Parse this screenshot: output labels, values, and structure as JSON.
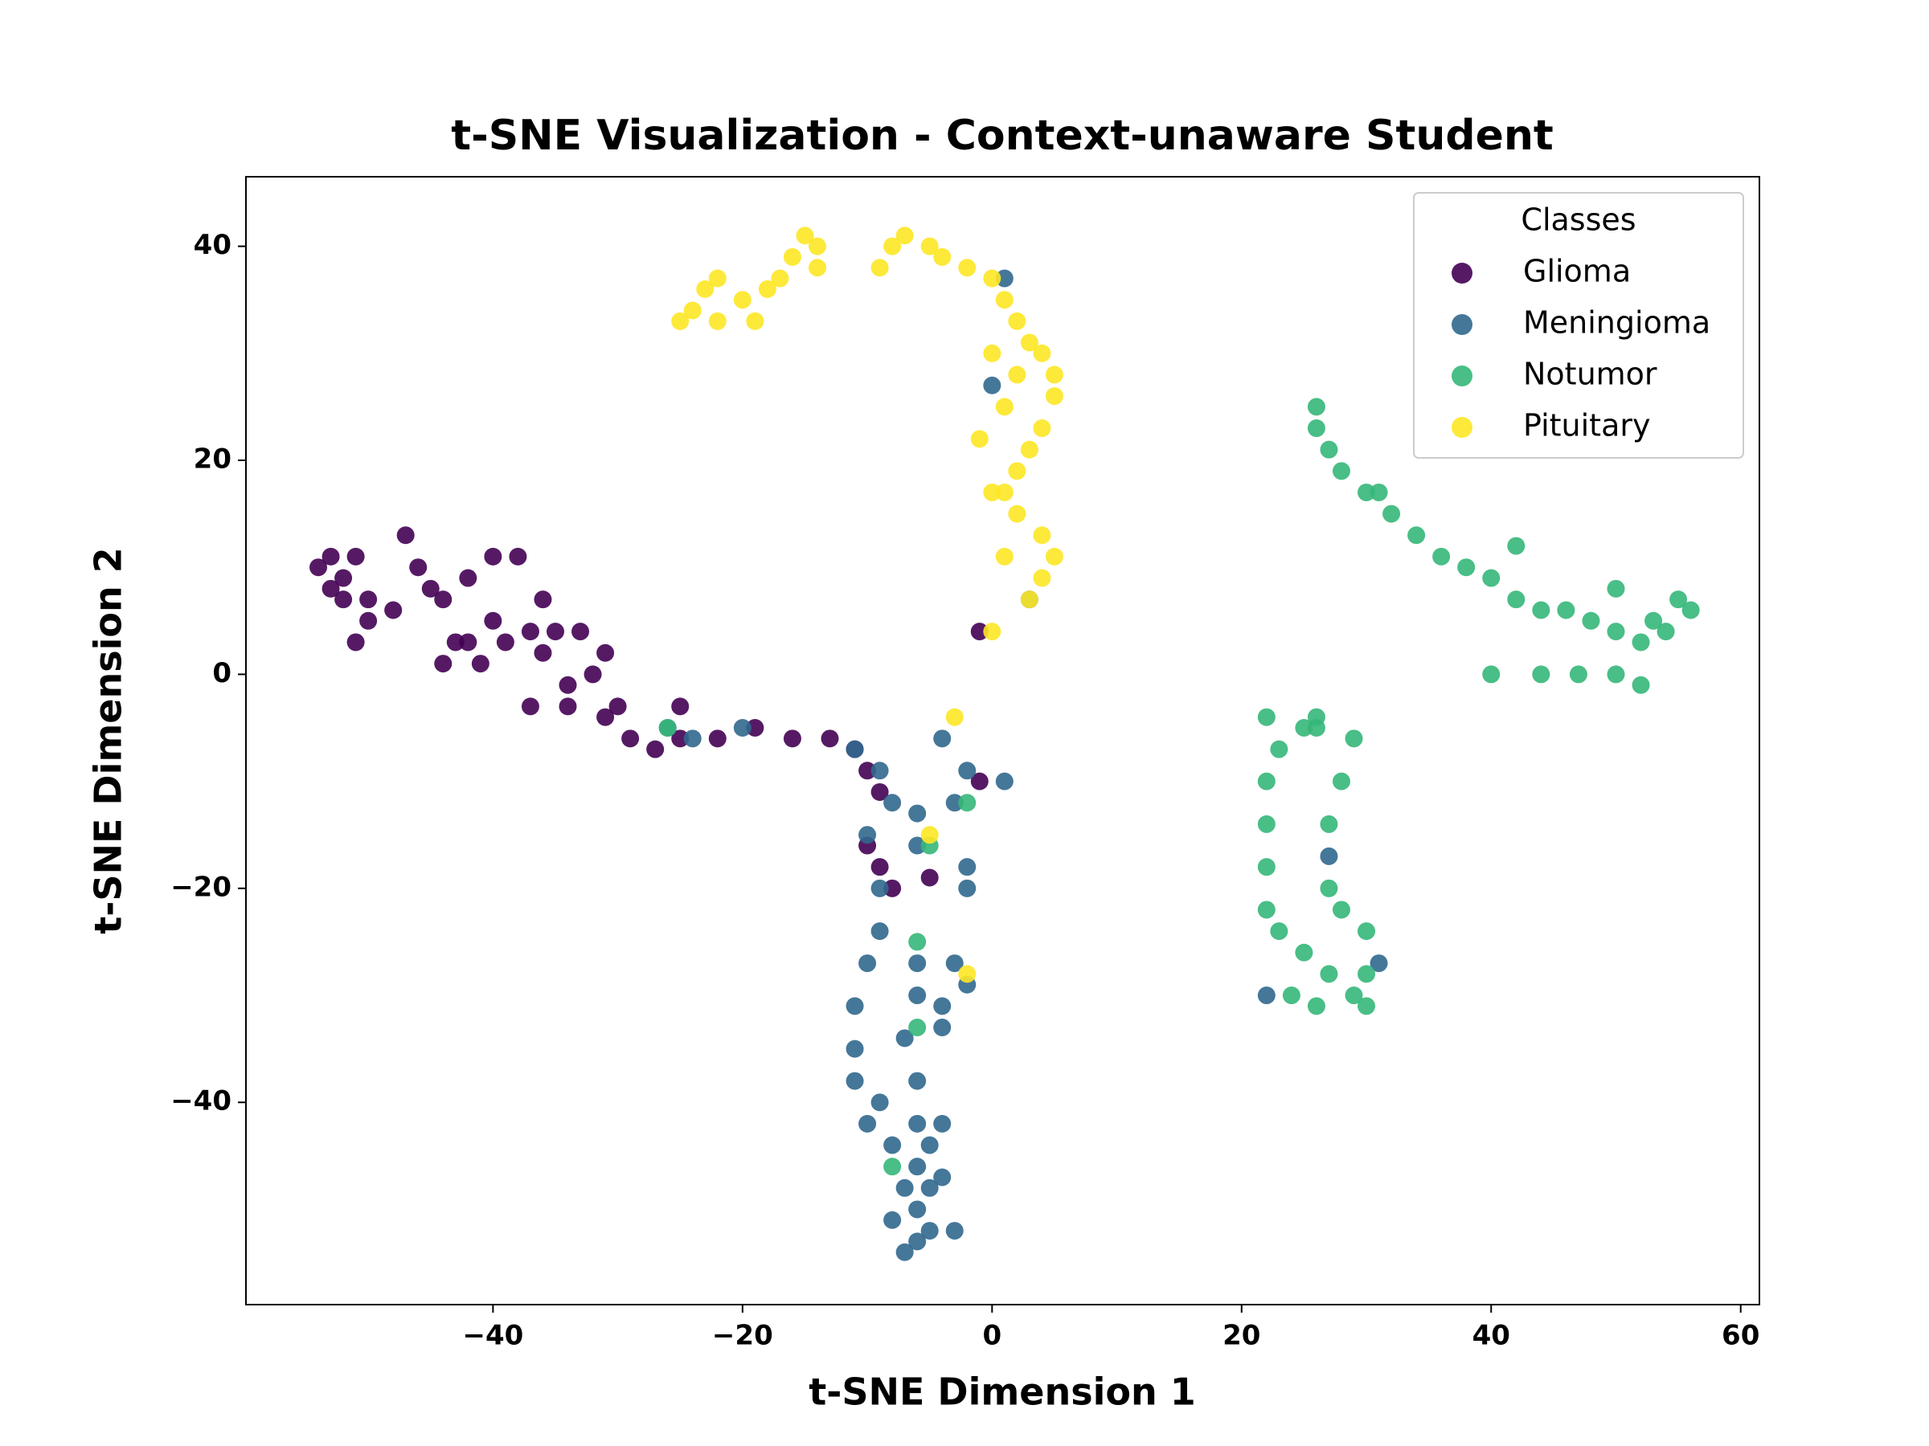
{
  "chart_data": {
    "type": "scatter",
    "title": "t-SNE Visualization - Context-unaware Student",
    "x_label": "t-SNE Dimension 1",
    "y_label": "t-SNE Dimension 2",
    "legend_title": "Classes",
    "legend": "upper right",
    "xlim": [
      -59.8,
      61.5
    ],
    "ylim": [
      -58.9,
      46.5
    ],
    "xticks": [
      {
        "value": -40,
        "label": "−40"
      },
      {
        "value": -20,
        "label": "−20"
      },
      0,
      20,
      40,
      60
    ],
    "yticks": [
      {
        "value": -40,
        "label": "−40"
      },
      {
        "value": -20,
        "label": "−20"
      },
      0,
      20,
      40
    ],
    "series": [
      {
        "name": "Glioma",
        "color": "#440154",
        "x": [
          -54,
          -53,
          -52,
          -51,
          -50,
          -52,
          -53,
          -50,
          -51,
          -48,
          -47,
          -46,
          -45,
          -44,
          -42,
          -40,
          -38,
          -36,
          -37,
          -39,
          -41,
          -42,
          -40,
          -44,
          -43,
          -35,
          -33,
          -31,
          -32,
          -34,
          -36,
          -37,
          -34,
          -31,
          -29,
          -27,
          -25,
          -22,
          -19,
          -16,
          -13,
          -11,
          -10,
          -9,
          -10,
          -9,
          -8,
          -1,
          -5,
          -1,
          -25,
          -30
        ],
        "y": [
          10,
          11,
          9,
          11,
          7,
          7,
          8,
          5,
          3,
          6,
          13,
          10,
          8,
          7,
          9,
          11,
          11,
          7,
          4,
          3,
          1,
          3,
          5,
          1,
          3,
          4,
          4,
          2,
          0,
          -1,
          2,
          -3,
          -3,
          -4,
          -6,
          -7,
          -6,
          -6,
          -5,
          -6,
          -6,
          -7,
          -9,
          -11,
          -16,
          -18,
          -20,
          -10,
          -19,
          4,
          -3,
          -3
        ]
      },
      {
        "name": "Meningioma",
        "color": "#31688e",
        "x": [
          -26,
          -24,
          -20,
          -11,
          -9,
          -8,
          -10,
          -9,
          -9,
          -10,
          -11,
          -11,
          -11,
          -10,
          -8,
          -7,
          -8,
          -7,
          -6,
          -5,
          -6,
          -5,
          -6,
          -5,
          -6,
          -6,
          -7,
          -6,
          -6,
          -6,
          -6,
          -3,
          -2,
          -2,
          -3,
          -4,
          -4,
          -2,
          -4,
          1,
          -9,
          -4,
          -4,
          -3,
          1,
          0,
          3,
          22,
          31,
          27,
          -2
        ],
        "y": [
          -5,
          -6,
          -5,
          -7,
          -9,
          -12,
          -15,
          -20,
          -24,
          -27,
          -31,
          -35,
          -38,
          -42,
          -44,
          -48,
          -51,
          -54,
          -53,
          -52,
          -50,
          -48,
          -46,
          -44,
          -42,
          -38,
          -34,
          -30,
          -27,
          -16,
          -13,
          -12,
          -18,
          -20,
          -27,
          -31,
          -33,
          -29,
          -6,
          -10,
          -40,
          -42,
          -47,
          -52,
          37,
          27,
          7,
          -30,
          -27,
          -17,
          -9
        ]
      },
      {
        "name": "Notumor",
        "color": "#35b779",
        "x": [
          26,
          26,
          27,
          28,
          30,
          32,
          34,
          36,
          38,
          40,
          42,
          44,
          46,
          48,
          50,
          52,
          53,
          55,
          56,
          54,
          50,
          42,
          31,
          40,
          44,
          47,
          50,
          52,
          26,
          25,
          23,
          22,
          22,
          22,
          22,
          23,
          25,
          27,
          29,
          30,
          30,
          30,
          28,
          27,
          24,
          26,
          22,
          29,
          28,
          27,
          26,
          -26,
          -6,
          -6,
          -8,
          -5,
          -2
        ],
        "y": [
          25,
          23,
          21,
          19,
          17,
          15,
          13,
          11,
          10,
          9,
          7,
          6,
          6,
          5,
          4,
          3,
          5,
          7,
          6,
          4,
          8,
          12,
          17,
          0,
          0,
          0,
          0,
          -1,
          -4,
          -5,
          -7,
          -10,
          -14,
          -18,
          -22,
          -24,
          -26,
          -28,
          -30,
          -31,
          -28,
          -24,
          -22,
          -20,
          -30,
          -31,
          -4,
          -6,
          -10,
          -14,
          -5,
          -5,
          -25,
          -33,
          -46,
          -16,
          -12
        ]
      },
      {
        "name": "Pituitary",
        "color": "#fde725",
        "x": [
          -25,
          -24,
          -23,
          -22,
          -20,
          -18,
          -17,
          -16,
          -15,
          -14,
          -14,
          -19,
          -22,
          -9,
          -8,
          -7,
          -5,
          -4,
          -2,
          0,
          1,
          2,
          3,
          4,
          5,
          5,
          4,
          3,
          2,
          1,
          2,
          4,
          5,
          4,
          3,
          0,
          1,
          0,
          1,
          -1,
          0,
          2,
          -3,
          -5,
          -2
        ],
        "y": [
          33,
          34,
          36,
          37,
          35,
          36,
          37,
          39,
          41,
          40,
          38,
          33,
          33,
          38,
          40,
          41,
          40,
          39,
          38,
          37,
          35,
          33,
          31,
          30,
          28,
          26,
          23,
          21,
          19,
          17,
          15,
          13,
          11,
          9,
          7,
          4,
          11,
          30,
          25,
          22,
          17,
          28,
          -4,
          -15,
          -28
        ]
      }
    ]
  }
}
